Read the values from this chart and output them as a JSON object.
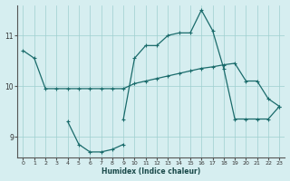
{
  "xlabel": "Humidex (Indice chaleur)",
  "bg_color": "#d6eef0",
  "grid_color": "#9fcfcf",
  "line_color": "#1a6b6b",
  "xlim": [
    -0.5,
    23.5
  ],
  "ylim": [
    8.6,
    11.6
  ],
  "yticks": [
    9,
    10,
    11
  ],
  "xticks": [
    0,
    1,
    2,
    3,
    4,
    5,
    6,
    7,
    8,
    9,
    10,
    11,
    12,
    13,
    14,
    15,
    16,
    17,
    18,
    19,
    20,
    21,
    22,
    23
  ],
  "line1_x": [
    0,
    1,
    2,
    3,
    4,
    5,
    6,
    7,
    8,
    9,
    10,
    11,
    12,
    13,
    14,
    15,
    16,
    17,
    18,
    19,
    20,
    21,
    22,
    23
  ],
  "line1_y": [
    10.7,
    10.55,
    9.95,
    9.95,
    9.95,
    9.95,
    9.95,
    9.95,
    9.95,
    9.95,
    10.05,
    10.1,
    10.15,
    10.2,
    10.25,
    10.3,
    10.35,
    10.38,
    10.42,
    10.45,
    10.1,
    10.1,
    9.75,
    9.6
  ],
  "line2_x": [
    4,
    5,
    6,
    7,
    8,
    9
  ],
  "line2_y": [
    9.3,
    8.85,
    8.7,
    8.7,
    8.75,
    8.85
  ],
  "line3_x": [
    9,
    10,
    11,
    12,
    13,
    14,
    15,
    16,
    17,
    18,
    19,
    20,
    21,
    22,
    23
  ],
  "line3_y": [
    9.35,
    10.55,
    10.8,
    10.8,
    11.0,
    11.05,
    11.05,
    11.5,
    11.1,
    10.35,
    9.35,
    9.35,
    9.35,
    9.35,
    9.6
  ]
}
